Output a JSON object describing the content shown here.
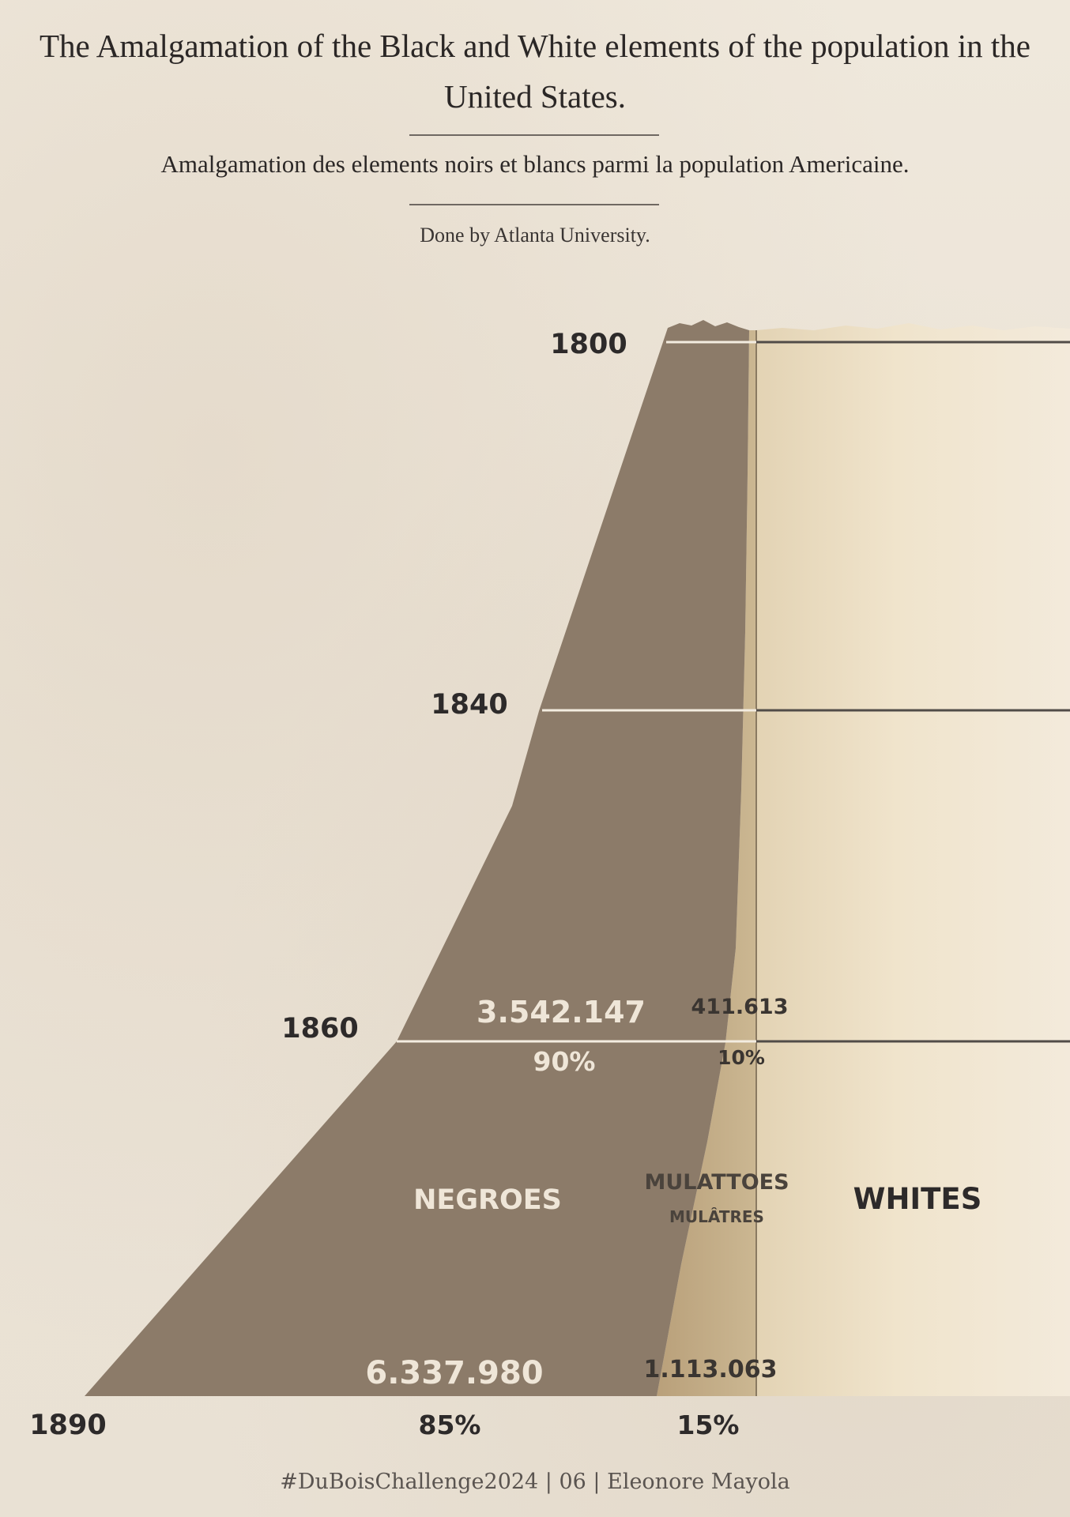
{
  "title": "The Amalgamation of the Black and White elements of the population in the United States.",
  "subtitle": "Amalgamation des elements noirs et blancs parmi la population Americaine.",
  "credit": "Done by Atlanta University.",
  "caption": "#DuBoisChallenge2024 | 06 | Eleonore Mayola",
  "colors": {
    "negroes_dark": "#3a3840",
    "negroes_light": "#877768",
    "mulattoes": "#c2ab85",
    "whites": "#f1e6d1",
    "rule_light": "#f3ece0",
    "rule_dark": "#514c48"
  },
  "chart_data": {
    "type": "area",
    "x": [
      "1800",
      "1840",
      "1860",
      "1890"
    ],
    "x_labels": [
      "1800",
      "1840",
      "1860",
      "1890"
    ],
    "categories": [
      "NEGROES",
      "MULATTOES",
      "WHITES"
    ],
    "series": [
      {
        "name": "NEGROES",
        "values": [
          null,
          null,
          3542147,
          6337980
        ],
        "percent": [
          null,
          null,
          "90%",
          "85%"
        ]
      },
      {
        "name": "MULATTOES",
        "subname": "MULÂTRES",
        "values": [
          null,
          null,
          411613,
          1113063
        ],
        "percent": [
          null,
          null,
          "10%",
          "15%"
        ]
      },
      {
        "name": "WHITES",
        "values": [
          null,
          null,
          null,
          null
        ]
      }
    ],
    "value_labels": {
      "negroes_1860": "3.542.147",
      "negroes_1860_pct": "90%",
      "mulattoes_1860": "411.613",
      "mulattoes_1860_pct": "10%",
      "negroes_1890": "6.337.980",
      "negroes_1890_pct": "85%",
      "mulattoes_1890": "1.113.063",
      "mulattoes_1890_pct": "15%"
    },
    "band_labels": {
      "negroes": "NEGROES",
      "mulattoes": "MULATTOES",
      "mulattoes_fr": "MULÂTRES",
      "whites": "WHITES"
    },
    "legend": "none",
    "grid": false
  }
}
